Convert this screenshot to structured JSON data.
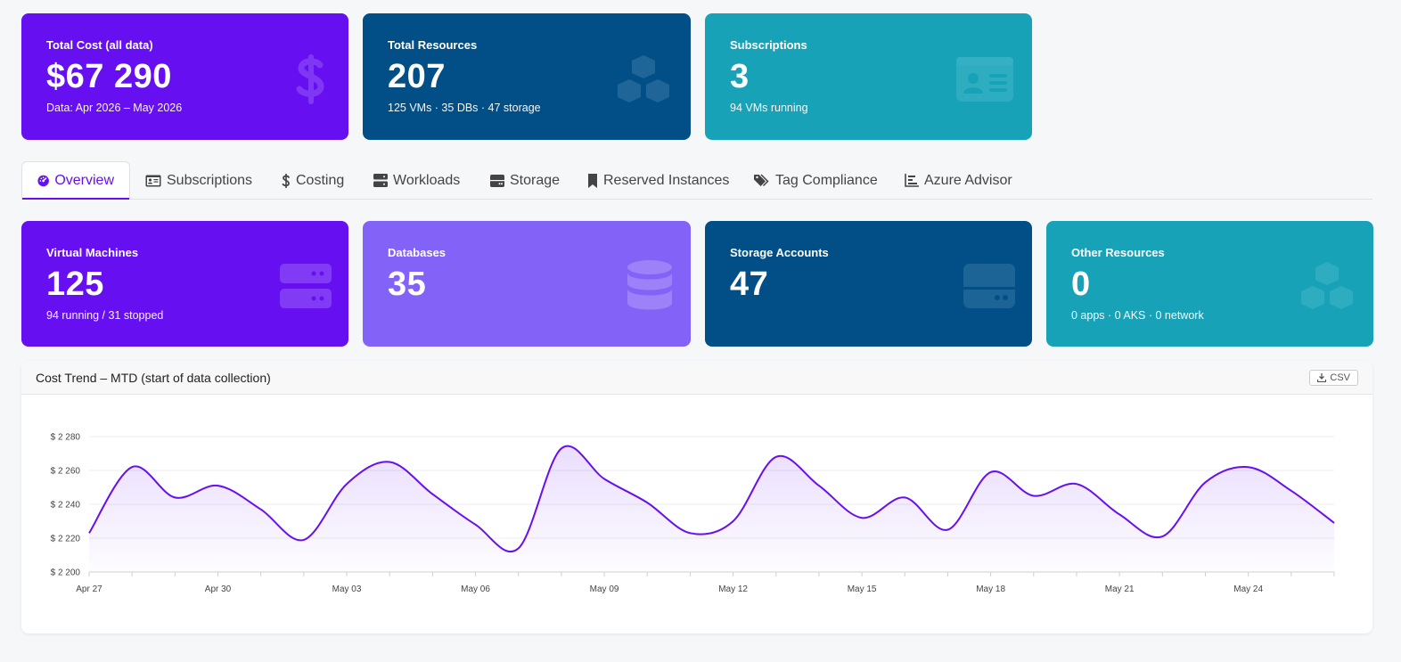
{
  "summary_cards": [
    {
      "title": "Total Cost (all data)",
      "value": "$67 290",
      "sub": "Data: Apr 2026 – May 2026",
      "icon": "dollar-icon",
      "color": "#6610f2"
    },
    {
      "title": "Total Resources",
      "value": "207",
      "sub": "125 VMs · 35 DBs · 47 storage",
      "icon": "cubes-icon",
      "color": "#014f86"
    },
    {
      "title": "Subscriptions",
      "value": "3",
      "sub": "94 VMs running",
      "icon": "id-card-icon",
      "color": "#17a2b8"
    }
  ],
  "tabs": [
    {
      "label": "Overview",
      "icon": "dashboard-icon",
      "active": true
    },
    {
      "label": "Subscriptions",
      "icon": "id-card-icon"
    },
    {
      "label": "Costing",
      "icon": "dollar-icon"
    },
    {
      "label": "Workloads",
      "icon": "server-icon"
    },
    {
      "label": "Storage",
      "icon": "hdd-icon"
    },
    {
      "label": "Reserved Instances",
      "icon": "bookmark-icon"
    },
    {
      "label": "Tag Compliance",
      "icon": "tags-icon"
    },
    {
      "label": "Azure Advisor",
      "icon": "chart-bar-icon"
    }
  ],
  "resource_cards": [
    {
      "title": "Virtual Machines",
      "value": "125",
      "sub": "94 running / 31 stopped",
      "icon": "server-icon",
      "color": "#6610f2"
    },
    {
      "title": "Databases",
      "value": "35",
      "sub": "",
      "icon": "database-icon",
      "color": "#8362f7"
    },
    {
      "title": "Storage Accounts",
      "value": "47",
      "sub": "",
      "icon": "hdd-icon",
      "color": "#014f86"
    },
    {
      "title": "Other Resources",
      "value": "0",
      "sub": "0 apps · 0 AKS · 0 network",
      "icon": "cubes-icon",
      "color": "#17a2b8"
    }
  ],
  "chart_panel": {
    "title": "Cost Trend – MTD (start of data collection)",
    "csv_label": "CSV"
  },
  "chart_data": {
    "type": "area",
    "x": [
      "Apr 27",
      "Apr 28",
      "Apr 29",
      "Apr 30",
      "May 01",
      "May 02",
      "May 03",
      "May 04",
      "May 05",
      "May 06",
      "May 07",
      "May 08",
      "May 09",
      "May 10",
      "May 11",
      "May 12",
      "May 13",
      "May 14",
      "May 15",
      "May 16",
      "May 17",
      "May 18",
      "May 19",
      "May 20",
      "May 21",
      "May 22",
      "May 23",
      "May 24",
      "May 25",
      "May 26"
    ],
    "x_tick_labels": [
      "Apr 27",
      "Apr 30",
      "May 03",
      "May 06",
      "May 09",
      "May 12",
      "May 15",
      "May 18",
      "May 21",
      "May 24"
    ],
    "series": [
      {
        "values": [
          2223,
          2262,
          2244,
          2251,
          2237,
          2219,
          2252,
          2265,
          2246,
          2228,
          2214,
          2273,
          2255,
          2241,
          2223,
          2230,
          2268,
          2251,
          2232,
          2244,
          2225,
          2259,
          2245,
          2252,
          2234,
          2221,
          2253,
          2262,
          2248,
          2229
        ]
      }
    ],
    "ylim": [
      2200,
      2280
    ],
    "y_ticks": [
      2200,
      2220,
      2240,
      2260,
      2280
    ],
    "y_tick_prefix": "$ ",
    "grid": true,
    "line_color": "#6610f2"
  }
}
